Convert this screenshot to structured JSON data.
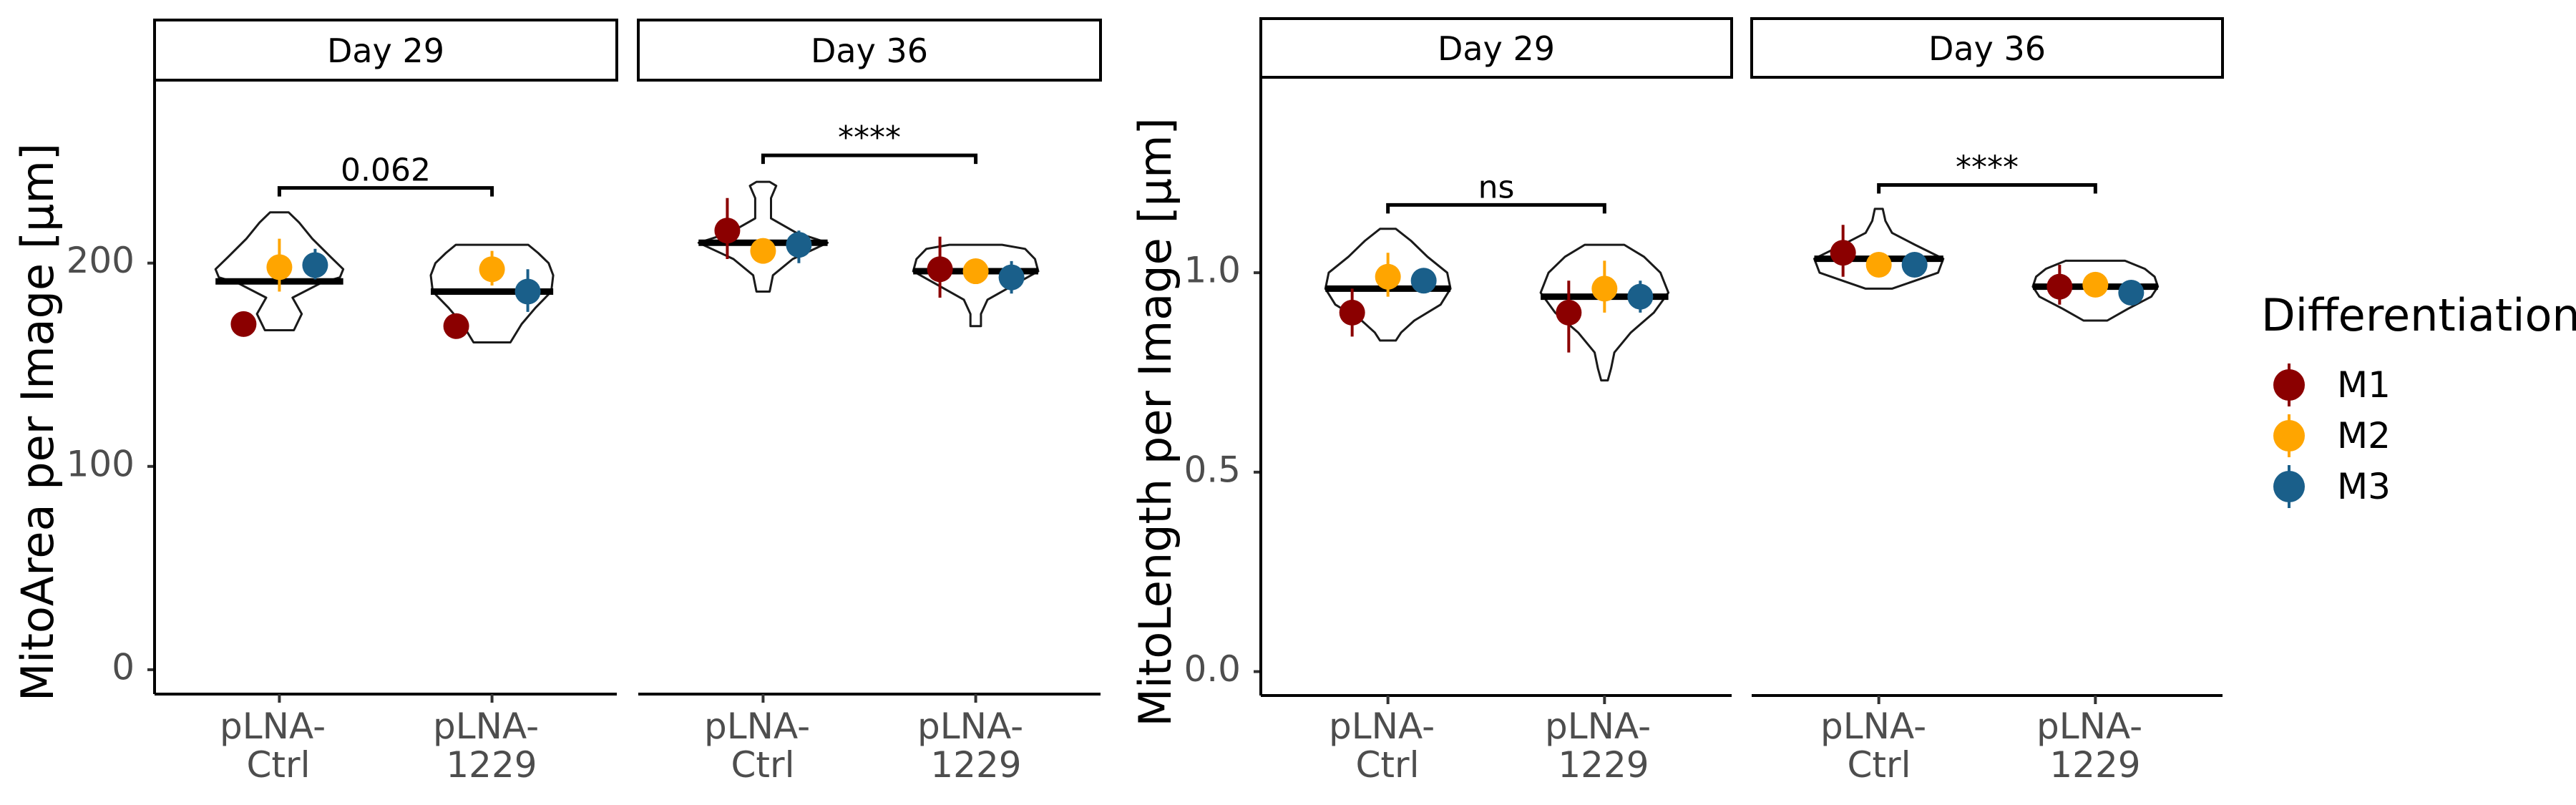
{
  "colors": {
    "M1": "#8b0000",
    "M2": "#ffa500",
    "M3": "#1a5f8a"
  },
  "legend": {
    "title": "Differentiation",
    "items": [
      {
        "name": "M1",
        "label": "M1",
        "color": "#8b0000"
      },
      {
        "name": "M2",
        "label": "M2",
        "color": "#ffa500"
      },
      {
        "name": "M3",
        "label": "M3",
        "color": "#1a5f8a"
      }
    ]
  },
  "chart_data": [
    {
      "type": "violin",
      "ylabel": "MitoArea per Image [µm]",
      "ylim": [
        -12,
        290
      ],
      "yticks": [
        0,
        100,
        200
      ],
      "ytick_labels": [
        "0",
        "100",
        "200"
      ],
      "categories": [
        "pLNA-Ctrl",
        "pLNA-1229"
      ],
      "category_labels": [
        [
          "pLNA-",
          "Ctrl"
        ],
        [
          "pLNA-",
          "1229"
        ]
      ],
      "panels": [
        {
          "strip": "Day 29",
          "significance": {
            "label": "0.062",
            "y": 237
          },
          "groups": [
            {
              "category": "pLNA-Ctrl",
              "median": 191,
              "violin": [
                [
                  167,
                  0.22
                ],
                [
                  175,
                  0.34
                ],
                [
                  183,
                  0.2
                ],
                [
                  190,
                  0.62
                ],
                [
                  193,
                  0.92
                ],
                [
                  197,
                  0.97
                ],
                [
                  203,
                  0.78
                ],
                [
                  212,
                  0.5
                ],
                [
                  220,
                  0.3
                ],
                [
                  225,
                  0.14
                ]
              ],
              "points": [
                {
                  "series": "M1",
                  "y": 170,
                  "lo": 170,
                  "hi": 170
                },
                {
                  "series": "M2",
                  "y": 198,
                  "lo": 186,
                  "hi": 212
                },
                {
                  "series": "M3",
                  "y": 199,
                  "lo": 192,
                  "hi": 207
                }
              ]
            },
            {
              "category": "pLNA-1229",
              "median": 186,
              "violin": [
                [
                  161,
                  0.28
                ],
                [
                  170,
                  0.45
                ],
                [
                  178,
                  0.66
                ],
                [
                  186,
                  0.9
                ],
                [
                  194,
                  0.93
                ],
                [
                  200,
                  0.86
                ],
                [
                  205,
                  0.7
                ],
                [
                  209,
                  0.55
                ]
              ],
              "points": [
                {
                  "series": "M1",
                  "y": 169,
                  "lo": 169,
                  "hi": 169
                },
                {
                  "series": "M2",
                  "y": 197,
                  "lo": 189,
                  "hi": 206
                },
                {
                  "series": "M3",
                  "y": 186,
                  "lo": 176,
                  "hi": 197
                }
              ]
            }
          ]
        },
        {
          "strip": "Day 36",
          "significance": {
            "label": "****",
            "y": 253
          },
          "groups": [
            {
              "category": "pLNA-Ctrl",
              "median": 210,
              "violin": [
                [
                  186,
                  0.1
                ],
                [
                  194,
                  0.15
                ],
                [
                  202,
                  0.45
                ],
                [
                  210,
                  0.98
                ],
                [
                  215,
                  0.5
                ],
                [
                  222,
                  0.12
                ],
                [
                  232,
                  0.12
                ],
                [
                  238,
                  0.2
                ],
                [
                  240,
                  0.1
                ]
              ],
              "points": [
                {
                  "series": "M1",
                  "y": 216,
                  "lo": 202,
                  "hi": 232
                },
                {
                  "series": "M2",
                  "y": 206,
                  "lo": 202,
                  "hi": 210
                },
                {
                  "series": "M3",
                  "y": 209,
                  "lo": 200,
                  "hi": 216
                }
              ]
            },
            {
              "category": "pLNA-1229",
              "median": 196,
              "violin": [
                [
                  169,
                  0.08
                ],
                [
                  175,
                  0.08
                ],
                [
                  182,
                  0.18
                ],
                [
                  190,
                  0.62
                ],
                [
                  196,
                  0.95
                ],
                [
                  202,
                  0.9
                ],
                [
                  207,
                  0.75
                ],
                [
                  209,
                  0.4
                ]
              ],
              "points": [
                {
                  "series": "M1",
                  "y": 197,
                  "lo": 183,
                  "hi": 213
                },
                {
                  "series": "M2",
                  "y": 196,
                  "lo": 193,
                  "hi": 199
                },
                {
                  "series": "M3",
                  "y": 193,
                  "lo": 185,
                  "hi": 201
                }
              ]
            }
          ]
        }
      ]
    },
    {
      "type": "violin",
      "ylabel": "MitoLength per Image [µm]",
      "ylim": [
        -0.06,
        1.49
      ],
      "yticks": [
        0.0,
        0.5,
        1.0
      ],
      "ytick_labels": [
        "0.0",
        "0.5",
        "1.0"
      ],
      "categories": [
        "pLNA-Ctrl",
        "pLNA-1229"
      ],
      "category_labels": [
        [
          "pLNA-",
          "Ctrl"
        ],
        [
          "pLNA-",
          "1229"
        ]
      ],
      "panels": [
        {
          "strip": "Day 29",
          "significance": {
            "label": "ns",
            "y": 1.17
          },
          "groups": [
            {
              "category": "pLNA-Ctrl",
              "median": 0.96,
              "violin": [
                [
                  0.83,
                  0.12
                ],
                [
                  0.85,
                  0.2
                ],
                [
                  0.88,
                  0.4
                ],
                [
                  0.92,
                  0.8
                ],
                [
                  0.96,
                  0.95
                ],
                [
                  1.0,
                  0.9
                ],
                [
                  1.04,
                  0.6
                ],
                [
                  1.08,
                  0.35
                ],
                [
                  1.11,
                  0.12
                ]
              ],
              "points": [
                {
                  "series": "M1",
                  "y": 0.9,
                  "lo": 0.84,
                  "hi": 0.96
                },
                {
                  "series": "M2",
                  "y": 0.99,
                  "lo": 0.94,
                  "hi": 1.05
                },
                {
                  "series": "M3",
                  "y": 0.98,
                  "lo": 0.95,
                  "hi": 1.01
                }
              ]
            },
            {
              "category": "pLNA-1229",
              "median": 0.94,
              "violin": [
                [
                  0.73,
                  0.05
                ],
                [
                  0.76,
                  0.1
                ],
                [
                  0.8,
                  0.15
                ],
                [
                  0.85,
                  0.4
                ],
                [
                  0.9,
                  0.75
                ],
                [
                  0.95,
                  0.97
                ],
                [
                  1.0,
                  0.85
                ],
                [
                  1.04,
                  0.6
                ],
                [
                  1.07,
                  0.3
                ]
              ],
              "points": [
                {
                  "series": "M1",
                  "y": 0.9,
                  "lo": 0.8,
                  "hi": 0.98
                },
                {
                  "series": "M2",
                  "y": 0.96,
                  "lo": 0.9,
                  "hi": 1.03
                },
                {
                  "series": "M3",
                  "y": 0.94,
                  "lo": 0.9,
                  "hi": 0.98
                }
              ]
            }
          ]
        },
        {
          "strip": "Day 36",
          "significance": {
            "label": "****",
            "y": 1.22
          },
          "groups": [
            {
              "category": "pLNA-Ctrl",
              "median": 1.035,
              "violin": [
                [
                  0.96,
                  0.2
                ],
                [
                  0.98,
                  0.55
                ],
                [
                  1.0,
                  0.9
                ],
                [
                  1.035,
                  0.98
                ],
                [
                  1.07,
                  0.55
                ],
                [
                  1.1,
                  0.2
                ],
                [
                  1.13,
                  0.1
                ],
                [
                  1.16,
                  0.06
                ]
              ],
              "points": [
                {
                  "series": "M1",
                  "y": 1.05,
                  "lo": 0.99,
                  "hi": 1.12
                },
                {
                  "series": "M2",
                  "y": 1.02,
                  "lo": 1.0,
                  "hi": 1.04
                },
                {
                  "series": "M3",
                  "y": 1.02,
                  "lo": 1.0,
                  "hi": 1.05
                }
              ]
            },
            {
              "category": "pLNA-1229",
              "median": 0.965,
              "violin": [
                [
                  0.88,
                  0.18
                ],
                [
                  0.91,
                  0.5
                ],
                [
                  0.94,
                  0.85
                ],
                [
                  0.965,
                  0.95
                ],
                [
                  0.99,
                  0.9
                ],
                [
                  1.01,
                  0.75
                ],
                [
                  1.03,
                  0.45
                ]
              ],
              "points": [
                {
                  "series": "M1",
                  "y": 0.965,
                  "lo": 0.92,
                  "hi": 1.02
                },
                {
                  "series": "M2",
                  "y": 0.97,
                  "lo": 0.96,
                  "hi": 0.98
                },
                {
                  "series": "M3",
                  "y": 0.95,
                  "lo": 0.92,
                  "hi": 0.98
                }
              ]
            }
          ]
        }
      ]
    }
  ]
}
